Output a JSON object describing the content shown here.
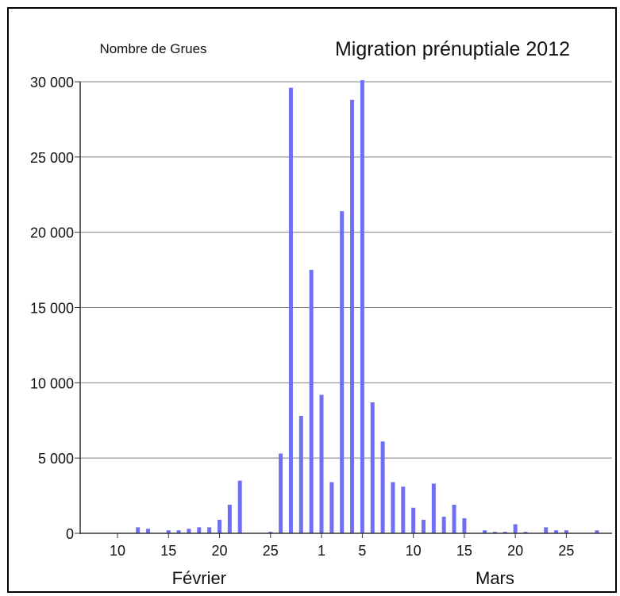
{
  "chart_data": {
    "type": "bar",
    "title": "Migration prénuptiale 2012",
    "ylabel": "Nombre de Grues",
    "xlabel": "",
    "ylim": [
      0,
      30000
    ],
    "y_ticks": [
      {
        "value": 0,
        "label": "0"
      },
      {
        "value": 5000,
        "label": "5 000"
      },
      {
        "value": 10000,
        "label": "10 000"
      },
      {
        "value": 15000,
        "label": "15 000"
      },
      {
        "value": 20000,
        "label": "20 000"
      },
      {
        "value": 25000,
        "label": "25 000"
      },
      {
        "value": 30000,
        "label": "30 000"
      }
    ],
    "x_ticks": [
      {
        "date": "2012-02-10",
        "label": "10"
      },
      {
        "date": "2012-02-15",
        "label": "15"
      },
      {
        "date": "2012-02-20",
        "label": "20"
      },
      {
        "date": "2012-02-25",
        "label": "25"
      },
      {
        "date": "2012-03-01",
        "label": "1"
      },
      {
        "date": "2012-03-05",
        "label": "5"
      },
      {
        "date": "2012-03-10",
        "label": "10"
      },
      {
        "date": "2012-03-15",
        "label": "15"
      },
      {
        "date": "2012-03-20",
        "label": "20"
      },
      {
        "date": "2012-03-25",
        "label": "25"
      }
    ],
    "month_labels": [
      {
        "label": "Février",
        "date": "2012-02-18"
      },
      {
        "label": "Mars",
        "date": "2012-03-18"
      }
    ],
    "x_range": [
      "2012-02-07",
      "2012-03-28"
    ],
    "grid": true,
    "bar_color": "#6f6ff5",
    "series": [
      {
        "points": [
          {
            "date": "2012-02-12",
            "value": 400
          },
          {
            "date": "2012-02-13",
            "value": 300
          },
          {
            "date": "2012-02-15",
            "value": 200
          },
          {
            "date": "2012-02-16",
            "value": 200
          },
          {
            "date": "2012-02-17",
            "value": 300
          },
          {
            "date": "2012-02-18",
            "value": 400
          },
          {
            "date": "2012-02-19",
            "value": 400
          },
          {
            "date": "2012-02-20",
            "value": 900
          },
          {
            "date": "2012-02-21",
            "value": 1900
          },
          {
            "date": "2012-02-22",
            "value": 3500
          },
          {
            "date": "2012-02-25",
            "value": 100
          },
          {
            "date": "2012-02-26",
            "value": 5300
          },
          {
            "date": "2012-02-27",
            "value": 29600
          },
          {
            "date": "2012-02-28",
            "value": 7800
          },
          {
            "date": "2012-02-29",
            "value": 17500
          },
          {
            "date": "2012-03-01",
            "value": 9200
          },
          {
            "date": "2012-03-02",
            "value": 3400
          },
          {
            "date": "2012-03-03",
            "value": 21400
          },
          {
            "date": "2012-03-04",
            "value": 28800
          },
          {
            "date": "2012-03-05",
            "value": 30100
          },
          {
            "date": "2012-03-06",
            "value": 8700
          },
          {
            "date": "2012-03-07",
            "value": 6100
          },
          {
            "date": "2012-03-08",
            "value": 3400
          },
          {
            "date": "2012-03-09",
            "value": 3100
          },
          {
            "date": "2012-03-10",
            "value": 1700
          },
          {
            "date": "2012-03-11",
            "value": 900
          },
          {
            "date": "2012-03-12",
            "value": 3300
          },
          {
            "date": "2012-03-13",
            "value": 1100
          },
          {
            "date": "2012-03-14",
            "value": 1900
          },
          {
            "date": "2012-03-15",
            "value": 1000
          },
          {
            "date": "2012-03-17",
            "value": 200
          },
          {
            "date": "2012-03-18",
            "value": 100
          },
          {
            "date": "2012-03-19",
            "value": 100
          },
          {
            "date": "2012-03-20",
            "value": 600
          },
          {
            "date": "2012-03-21",
            "value": 100
          },
          {
            "date": "2012-03-23",
            "value": 400
          },
          {
            "date": "2012-03-24",
            "value": 200
          },
          {
            "date": "2012-03-25",
            "value": 200
          },
          {
            "date": "2012-03-28",
            "value": 200
          }
        ]
      }
    ]
  }
}
